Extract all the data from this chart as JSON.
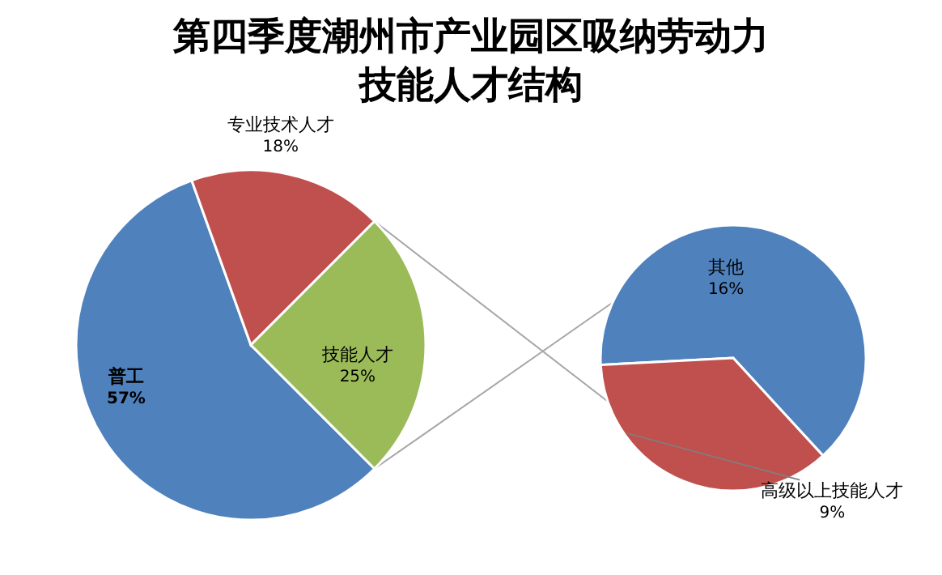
{
  "chart_data": [
    {
      "type": "pie",
      "title": "第四季度潮州市产业园区吸纳劳动力技能人才结构",
      "categories": [
        "普工",
        "专业技术人才",
        "技能人才"
      ],
      "values": [
        57,
        18,
        25
      ],
      "colors": [
        "#4f81bd",
        "#c0504d",
        "#9bbb59"
      ],
      "value_labels": [
        "57%",
        "18%",
        "25%"
      ]
    },
    {
      "type": "pie",
      "categories": [
        "其他",
        "高级以上技能人才"
      ],
      "values": [
        16,
        9
      ],
      "colors": [
        "#4f81bd",
        "#c0504d"
      ],
      "value_labels": [
        "16%",
        "9%"
      ]
    }
  ]
}
